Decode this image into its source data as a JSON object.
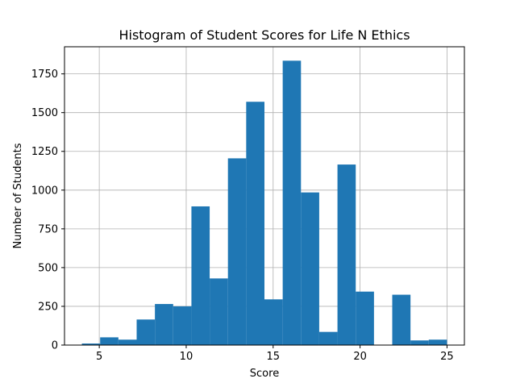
{
  "chart_data": {
    "type": "bar",
    "title": "Histogram of Student Scores for Life N Ethics",
    "xlabel": "Score",
    "ylabel": "Number of Students",
    "xlim": [
      3,
      26
    ],
    "ylim": [
      0,
      1925
    ],
    "grid": true,
    "bar_color": "#1f77b4",
    "xticks": [
      5,
      10,
      15,
      20,
      25
    ],
    "yticks": [
      0,
      250,
      500,
      750,
      1000,
      1250,
      1500,
      1750
    ],
    "bins": [
      {
        "x0": 4.0,
        "x1": 5.05,
        "value": 10
      },
      {
        "x0": 5.05,
        "x1": 6.1,
        "value": 50
      },
      {
        "x0": 6.1,
        "x1": 7.15,
        "value": 35
      },
      {
        "x0": 7.15,
        "x1": 8.2,
        "value": 165
      },
      {
        "x0": 8.2,
        "x1": 9.25,
        "value": 265
      },
      {
        "x0": 9.25,
        "x1": 10.3,
        "value": 250
      },
      {
        "x0": 10.3,
        "x1": 11.35,
        "value": 895
      },
      {
        "x0": 11.35,
        "x1": 12.4,
        "value": 430
      },
      {
        "x0": 12.4,
        "x1": 13.45,
        "value": 1205
      },
      {
        "x0": 13.45,
        "x1": 14.5,
        "value": 1570
      },
      {
        "x0": 14.5,
        "x1": 15.55,
        "value": 295
      },
      {
        "x0": 15.55,
        "x1": 16.6,
        "value": 1835
      },
      {
        "x0": 16.6,
        "x1": 17.65,
        "value": 985
      },
      {
        "x0": 17.65,
        "x1": 18.7,
        "value": 85
      },
      {
        "x0": 18.7,
        "x1": 19.75,
        "value": 1165
      },
      {
        "x0": 19.75,
        "x1": 20.8,
        "value": 345
      },
      {
        "x0": 20.8,
        "x1": 21.85,
        "value": 0
      },
      {
        "x0": 21.85,
        "x1": 22.9,
        "value": 325
      },
      {
        "x0": 22.9,
        "x1": 23.95,
        "value": 30
      },
      {
        "x0": 23.95,
        "x1": 25.0,
        "value": 35
      }
    ]
  }
}
